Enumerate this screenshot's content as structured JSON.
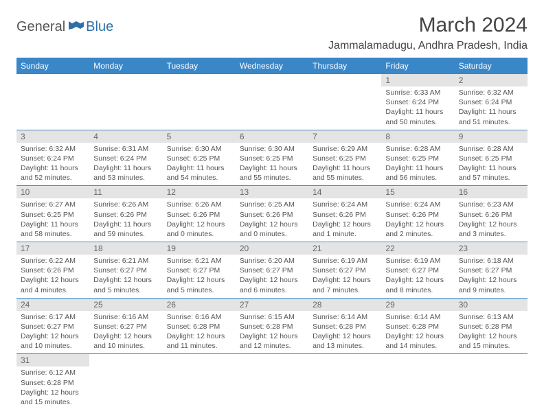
{
  "logo": {
    "part1": "General",
    "part2": "Blue"
  },
  "title": "March 2024",
  "location": "Jammalamadugu, Andhra Pradesh, India",
  "colors": {
    "header_bg": "#3a87c8",
    "header_text": "#ffffff",
    "daynum_bg": "#e4e4e4",
    "daynum_text": "#666666",
    "body_text": "#555555",
    "border": "#3a87c8"
  },
  "dayHeaders": [
    "Sunday",
    "Monday",
    "Tuesday",
    "Wednesday",
    "Thursday",
    "Friday",
    "Saturday"
  ],
  "weeks": [
    [
      null,
      null,
      null,
      null,
      null,
      {
        "n": "1",
        "sr": "Sunrise: 6:33 AM",
        "ss": "Sunset: 6:24 PM",
        "dl1": "Daylight: 11 hours",
        "dl2": "and 50 minutes."
      },
      {
        "n": "2",
        "sr": "Sunrise: 6:32 AM",
        "ss": "Sunset: 6:24 PM",
        "dl1": "Daylight: 11 hours",
        "dl2": "and 51 minutes."
      }
    ],
    [
      {
        "n": "3",
        "sr": "Sunrise: 6:32 AM",
        "ss": "Sunset: 6:24 PM",
        "dl1": "Daylight: 11 hours",
        "dl2": "and 52 minutes."
      },
      {
        "n": "4",
        "sr": "Sunrise: 6:31 AM",
        "ss": "Sunset: 6:24 PM",
        "dl1": "Daylight: 11 hours",
        "dl2": "and 53 minutes."
      },
      {
        "n": "5",
        "sr": "Sunrise: 6:30 AM",
        "ss": "Sunset: 6:25 PM",
        "dl1": "Daylight: 11 hours",
        "dl2": "and 54 minutes."
      },
      {
        "n": "6",
        "sr": "Sunrise: 6:30 AM",
        "ss": "Sunset: 6:25 PM",
        "dl1": "Daylight: 11 hours",
        "dl2": "and 55 minutes."
      },
      {
        "n": "7",
        "sr": "Sunrise: 6:29 AM",
        "ss": "Sunset: 6:25 PM",
        "dl1": "Daylight: 11 hours",
        "dl2": "and 55 minutes."
      },
      {
        "n": "8",
        "sr": "Sunrise: 6:28 AM",
        "ss": "Sunset: 6:25 PM",
        "dl1": "Daylight: 11 hours",
        "dl2": "and 56 minutes."
      },
      {
        "n": "9",
        "sr": "Sunrise: 6:28 AM",
        "ss": "Sunset: 6:25 PM",
        "dl1": "Daylight: 11 hours",
        "dl2": "and 57 minutes."
      }
    ],
    [
      {
        "n": "10",
        "sr": "Sunrise: 6:27 AM",
        "ss": "Sunset: 6:25 PM",
        "dl1": "Daylight: 11 hours",
        "dl2": "and 58 minutes."
      },
      {
        "n": "11",
        "sr": "Sunrise: 6:26 AM",
        "ss": "Sunset: 6:26 PM",
        "dl1": "Daylight: 11 hours",
        "dl2": "and 59 minutes."
      },
      {
        "n": "12",
        "sr": "Sunrise: 6:26 AM",
        "ss": "Sunset: 6:26 PM",
        "dl1": "Daylight: 12 hours",
        "dl2": "and 0 minutes."
      },
      {
        "n": "13",
        "sr": "Sunrise: 6:25 AM",
        "ss": "Sunset: 6:26 PM",
        "dl1": "Daylight: 12 hours",
        "dl2": "and 0 minutes."
      },
      {
        "n": "14",
        "sr": "Sunrise: 6:24 AM",
        "ss": "Sunset: 6:26 PM",
        "dl1": "Daylight: 12 hours",
        "dl2": "and 1 minute."
      },
      {
        "n": "15",
        "sr": "Sunrise: 6:24 AM",
        "ss": "Sunset: 6:26 PM",
        "dl1": "Daylight: 12 hours",
        "dl2": "and 2 minutes."
      },
      {
        "n": "16",
        "sr": "Sunrise: 6:23 AM",
        "ss": "Sunset: 6:26 PM",
        "dl1": "Daylight: 12 hours",
        "dl2": "and 3 minutes."
      }
    ],
    [
      {
        "n": "17",
        "sr": "Sunrise: 6:22 AM",
        "ss": "Sunset: 6:26 PM",
        "dl1": "Daylight: 12 hours",
        "dl2": "and 4 minutes."
      },
      {
        "n": "18",
        "sr": "Sunrise: 6:21 AM",
        "ss": "Sunset: 6:27 PM",
        "dl1": "Daylight: 12 hours",
        "dl2": "and 5 minutes."
      },
      {
        "n": "19",
        "sr": "Sunrise: 6:21 AM",
        "ss": "Sunset: 6:27 PM",
        "dl1": "Daylight: 12 hours",
        "dl2": "and 5 minutes."
      },
      {
        "n": "20",
        "sr": "Sunrise: 6:20 AM",
        "ss": "Sunset: 6:27 PM",
        "dl1": "Daylight: 12 hours",
        "dl2": "and 6 minutes."
      },
      {
        "n": "21",
        "sr": "Sunrise: 6:19 AM",
        "ss": "Sunset: 6:27 PM",
        "dl1": "Daylight: 12 hours",
        "dl2": "and 7 minutes."
      },
      {
        "n": "22",
        "sr": "Sunrise: 6:19 AM",
        "ss": "Sunset: 6:27 PM",
        "dl1": "Daylight: 12 hours",
        "dl2": "and 8 minutes."
      },
      {
        "n": "23",
        "sr": "Sunrise: 6:18 AM",
        "ss": "Sunset: 6:27 PM",
        "dl1": "Daylight: 12 hours",
        "dl2": "and 9 minutes."
      }
    ],
    [
      {
        "n": "24",
        "sr": "Sunrise: 6:17 AM",
        "ss": "Sunset: 6:27 PM",
        "dl1": "Daylight: 12 hours",
        "dl2": "and 10 minutes."
      },
      {
        "n": "25",
        "sr": "Sunrise: 6:16 AM",
        "ss": "Sunset: 6:27 PM",
        "dl1": "Daylight: 12 hours",
        "dl2": "and 10 minutes."
      },
      {
        "n": "26",
        "sr": "Sunrise: 6:16 AM",
        "ss": "Sunset: 6:28 PM",
        "dl1": "Daylight: 12 hours",
        "dl2": "and 11 minutes."
      },
      {
        "n": "27",
        "sr": "Sunrise: 6:15 AM",
        "ss": "Sunset: 6:28 PM",
        "dl1": "Daylight: 12 hours",
        "dl2": "and 12 minutes."
      },
      {
        "n": "28",
        "sr": "Sunrise: 6:14 AM",
        "ss": "Sunset: 6:28 PM",
        "dl1": "Daylight: 12 hours",
        "dl2": "and 13 minutes."
      },
      {
        "n": "29",
        "sr": "Sunrise: 6:14 AM",
        "ss": "Sunset: 6:28 PM",
        "dl1": "Daylight: 12 hours",
        "dl2": "and 14 minutes."
      },
      {
        "n": "30",
        "sr": "Sunrise: 6:13 AM",
        "ss": "Sunset: 6:28 PM",
        "dl1": "Daylight: 12 hours",
        "dl2": "and 15 minutes."
      }
    ],
    [
      {
        "n": "31",
        "sr": "Sunrise: 6:12 AM",
        "ss": "Sunset: 6:28 PM",
        "dl1": "Daylight: 12 hours",
        "dl2": "and 15 minutes."
      },
      null,
      null,
      null,
      null,
      null,
      null
    ]
  ]
}
